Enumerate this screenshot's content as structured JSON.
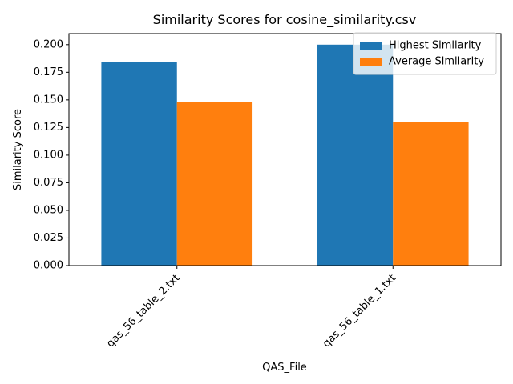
{
  "chart_data": {
    "type": "bar",
    "title": "Similarity Scores for cosine_similarity.csv",
    "xlabel": "QAS_File",
    "ylabel": "Similarity Score",
    "categories": [
      "qas_56_table_2.txt",
      "qas_56_table_1.txt"
    ],
    "series": [
      {
        "name": "Highest Similarity",
        "values": [
          0.184,
          0.2
        ],
        "color": "#1f77b4"
      },
      {
        "name": "Average Similarity",
        "values": [
          0.148,
          0.13
        ],
        "color": "#ff7f0e"
      }
    ],
    "ylim": [
      0,
      0.21
    ],
    "yticks": [
      0.0,
      0.025,
      0.05,
      0.075,
      0.1,
      0.125,
      0.15,
      0.175,
      0.2
    ],
    "ytick_labels": [
      "0.000",
      "0.025",
      "0.050",
      "0.075",
      "0.100",
      "0.125",
      "0.150",
      "0.175",
      "0.200"
    ],
    "grid": false,
    "legend_position": "top-right"
  }
}
